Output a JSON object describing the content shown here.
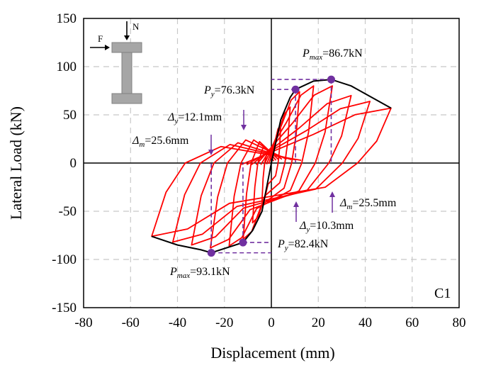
{
  "chart_data": {
    "type": "line",
    "xlabel": "Displacement (mm)",
    "ylabel": "Lateral Load (kN)",
    "xlim": [
      -80,
      80
    ],
    "ylim": [
      -150,
      150
    ],
    "xticks": [
      "-80",
      "-60",
      "-40",
      "-20",
      "0",
      "20",
      "40",
      "60",
      "80"
    ],
    "yticks": [
      "150",
      "100",
      "50",
      "0",
      "-50",
      "-100",
      "-150"
    ],
    "grid": true,
    "panel_label": "C1",
    "inset_labels": {
      "force": "F",
      "axial": "N"
    },
    "colors": {
      "hysteresis": "#ff0000",
      "skeleton": "#000000",
      "marker": "#7030a0",
      "guide": "#7030a0"
    },
    "hysteresis_loops": [
      {
        "peak_pos": [
          4,
          40
        ],
        "peak_neg": [
          -4,
          -40
        ]
      },
      {
        "peak_pos": [
          8,
          58
        ],
        "peak_neg": [
          -8,
          -62
        ]
      },
      {
        "peak_pos": [
          12,
          74
        ],
        "peak_neg": [
          -12,
          -79
        ]
      },
      {
        "peak_pos": [
          18,
          80
        ],
        "peak_neg": [
          -18,
          -86
        ]
      },
      {
        "peak_pos": [
          26,
          80
        ],
        "peak_neg": [
          -26,
          -88
        ]
      },
      {
        "peak_pos": [
          34,
          70
        ],
        "peak_neg": [
          -34,
          -85
        ]
      },
      {
        "peak_pos": [
          42,
          64
        ],
        "peak_neg": [
          -42,
          -82
        ]
      },
      {
        "peak_pos": [
          51,
          57
        ],
        "peak_neg": [
          -51,
          -76
        ]
      }
    ],
    "skeleton": {
      "x": [
        -51,
        -40,
        -30,
        -25.6,
        -12.1,
        -8,
        -4,
        0,
        4,
        8,
        10.3,
        18,
        25.5,
        34,
        51
      ],
      "y": [
        -76,
        -85,
        -90,
        -93.1,
        -82.4,
        -70,
        -50,
        0,
        45,
        68,
        76.3,
        85,
        86.7,
        80,
        57
      ]
    },
    "key_points": [
      {
        "name": "P_max_pos",
        "x": 25.5,
        "y": 86.7,
        "label": "86.7kN"
      },
      {
        "name": "P_y_pos",
        "x": 10.3,
        "y": 76.3,
        "label": "76.3kN"
      },
      {
        "name": "P_max_neg",
        "x": -25.6,
        "y": -93.1,
        "label": "93.1kN"
      },
      {
        "name": "P_y_neg",
        "x": -12.1,
        "y": -82.4,
        "label": "82.4kN"
      }
    ],
    "annotations": {
      "pmax_pos": {
        "sym": "P",
        "sub": "max",
        "val": "=86.7kN"
      },
      "py_pos": {
        "sym": "P",
        "sub": "y",
        "val": "=76.3kN"
      },
      "dy_neg": {
        "sym": "Δ",
        "sub": "y",
        "val": "=12.1mm"
      },
      "dm_neg": {
        "sym": "Δ",
        "sub": "m",
        "val": "=25.6mm"
      },
      "dm_pos": {
        "sym": "Δ",
        "sub": "m",
        "val": "=25.5mm"
      },
      "dy_pos": {
        "sym": "Δ",
        "sub": "y",
        "val": "=10.3mm"
      },
      "py_neg": {
        "sym": "P",
        "sub": "y",
        "val": "=82.4kN"
      },
      "pmax_neg": {
        "sym": "P",
        "sub": "max",
        "val": "=93.1kN"
      }
    }
  }
}
